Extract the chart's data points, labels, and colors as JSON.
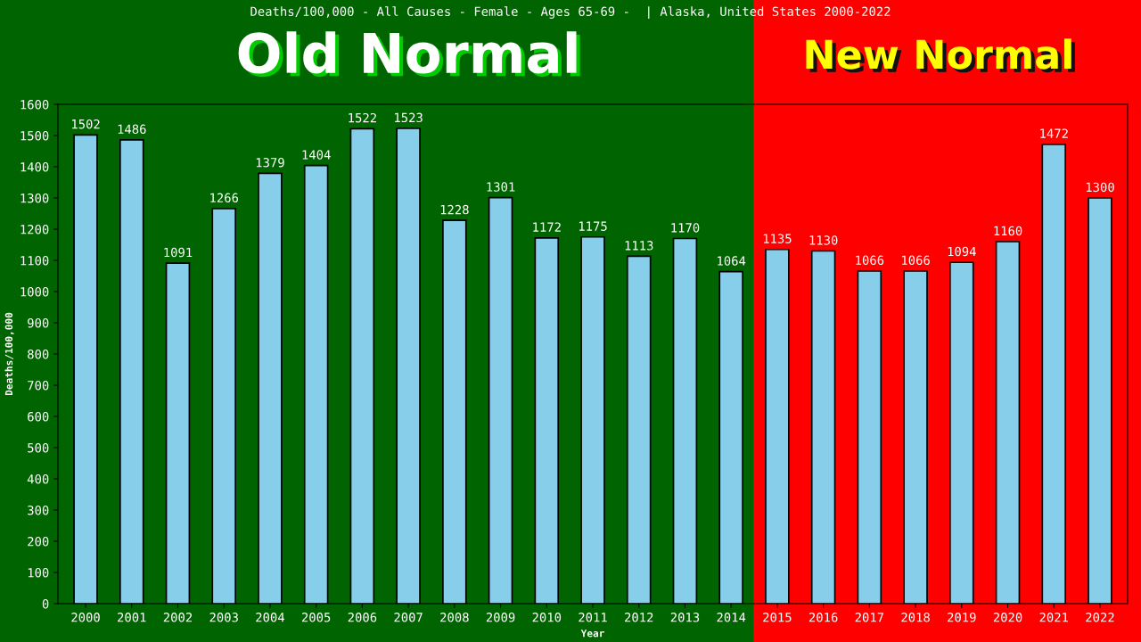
{
  "chart_data": {
    "type": "bar",
    "title": "Deaths/100,000 - All Causes - Female - Ages 65-69 -  | Alaska, United States 2000-2022",
    "xlabel": "Year",
    "ylabel": "Deaths/100,000",
    "categories": [
      "2000",
      "2001",
      "2002",
      "2003",
      "2004",
      "2005",
      "2006",
      "2007",
      "2008",
      "2009",
      "2010",
      "2011",
      "2012",
      "2013",
      "2014",
      "2015",
      "2016",
      "2017",
      "2018",
      "2019",
      "2020",
      "2021",
      "2022"
    ],
    "values": [
      1502,
      1486,
      1091,
      1266,
      1379,
      1404,
      1522,
      1523,
      1228,
      1301,
      1172,
      1175,
      1113,
      1170,
      1064,
      1135,
      1130,
      1066,
      1066,
      1094,
      1160,
      1472,
      1300
    ],
    "color": "#87ceeb",
    "data_labels": true,
    "ylim": [
      0,
      1600
    ],
    "yticks": [
      0,
      100,
      200,
      300,
      400,
      500,
      600,
      700,
      800,
      900,
      1000,
      1100,
      1200,
      1300,
      1400,
      1500,
      1600
    ],
    "grid": false,
    "legend": false,
    "bands": [
      {
        "axis": "x",
        "from": "2000",
        "to": "2014",
        "label": "Old Normal",
        "color": "#006400"
      },
      {
        "axis": "x",
        "from": "2014",
        "to": "2022",
        "label": "New Normal",
        "color": "#ff0000"
      }
    ]
  }
}
